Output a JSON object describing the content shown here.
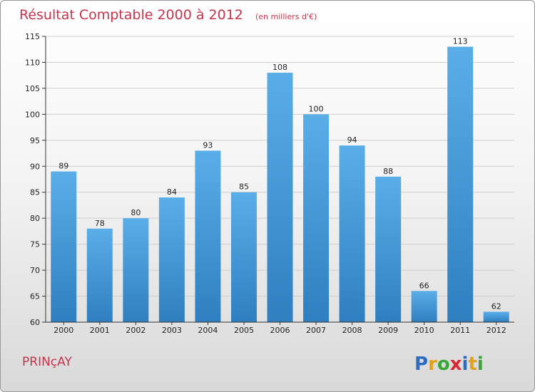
{
  "colors": {
    "title": "#c4344a",
    "bar_top": "#5aaee8",
    "bar_bottom": "#2f7fc0",
    "axis": "#333333",
    "grid": "#cfcfcf"
  },
  "title": {
    "main": "Résultat Comptable 2000 à 2012",
    "sub": "(en milliers d'€)"
  },
  "town": "PRINçAY",
  "logo": {
    "text": "Proxiti",
    "letters": [
      {
        "ch": "P",
        "color": "#2b6cc0"
      },
      {
        "ch": "r",
        "color": "#e0a21a"
      },
      {
        "ch": "o",
        "color": "#3aa635"
      },
      {
        "ch": "x",
        "color": "#d8262f"
      },
      {
        "ch": "i",
        "color": "#2b6cc0"
      },
      {
        "ch": "t",
        "color": "#e0a21a"
      },
      {
        "ch": "i",
        "color": "#3aa635"
      }
    ]
  },
  "chart_data": {
    "type": "bar",
    "title": "Résultat Comptable 2000 à 2012",
    "subtitle": "(en milliers d'€)",
    "categories": [
      "2000",
      "2001",
      "2002",
      "2003",
      "2004",
      "2005",
      "2006",
      "2007",
      "2008",
      "2009",
      "2010",
      "2011",
      "2012"
    ],
    "values": [
      89,
      78,
      80,
      84,
      93,
      85,
      108,
      100,
      94,
      88,
      66,
      113,
      62
    ],
    "ylim": [
      60,
      115
    ],
    "yticks": [
      60,
      65,
      70,
      75,
      80,
      85,
      90,
      95,
      100,
      105,
      110,
      115
    ],
    "grid": true,
    "data_labels": true
  }
}
